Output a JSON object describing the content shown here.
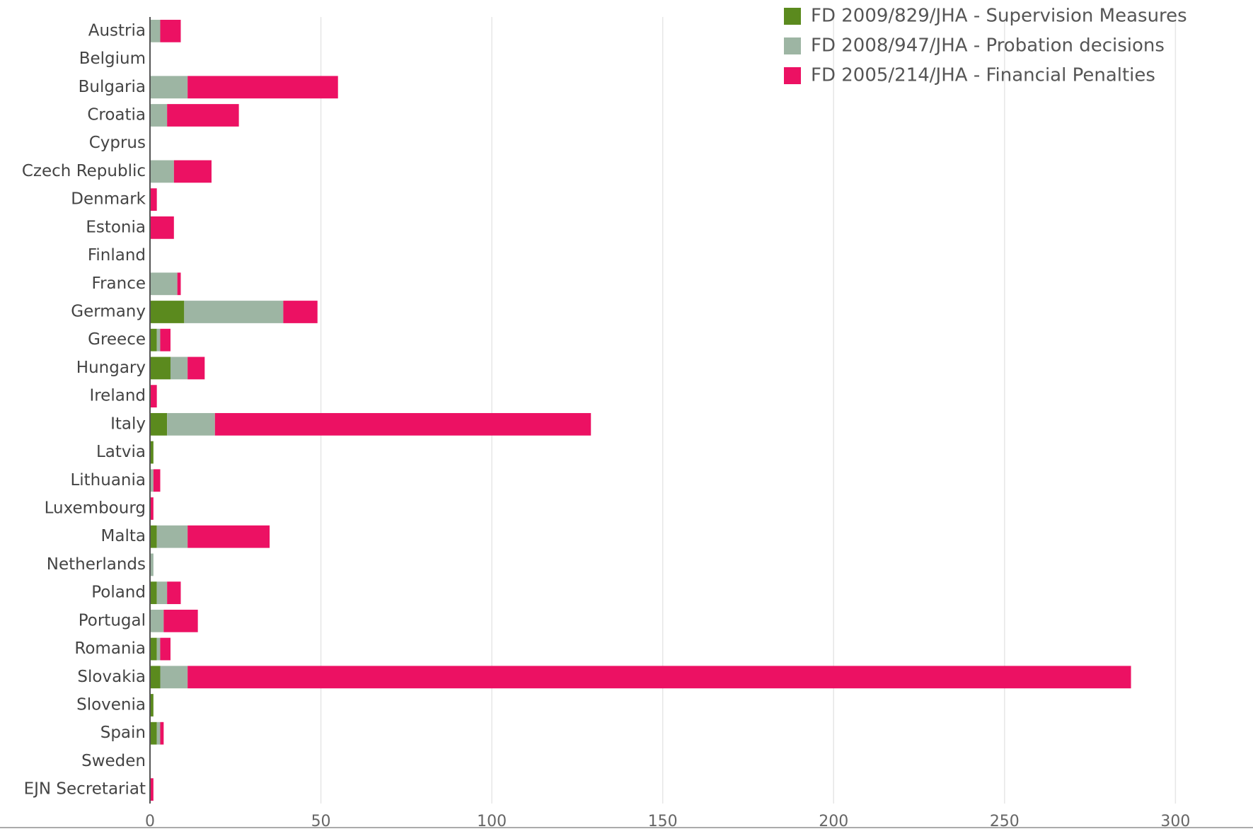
{
  "chart_data": {
    "type": "stacked_barh",
    "categories": [
      "Austria",
      "Belgium",
      "Bulgaria",
      "Croatia",
      "Cyprus",
      "Czech Republic",
      "Denmark",
      "Estonia",
      "Finland",
      "France",
      "Germany",
      "Greece",
      "Hungary",
      "Ireland",
      "Italy",
      "Latvia",
      "Lithuania",
      "Luxembourg",
      "Malta",
      "Netherlands",
      "Poland",
      "Portugal",
      "Romania",
      "Slovakia",
      "Slovenia",
      "Spain",
      "Sweden",
      "EJN Secretariat"
    ],
    "series": [
      {
        "name": "FD 2009/829/JHA - Supervision Measures",
        "color": "#5b8a1e",
        "values": [
          0,
          0,
          0,
          0,
          0,
          0,
          0,
          0,
          0,
          0,
          10,
          2,
          6,
          0,
          5,
          1,
          0,
          0,
          2,
          0,
          2,
          0,
          2,
          3,
          1,
          2,
          0,
          0
        ]
      },
      {
        "name": "FD 2008/947/JHA - Probation decisions",
        "color": "#9db5a3",
        "values": [
          3,
          0,
          11,
          5,
          0,
          7,
          0,
          0,
          0,
          8,
          29,
          1,
          5,
          0,
          14,
          0,
          1,
          0,
          9,
          1,
          3,
          4,
          1,
          8,
          0,
          1,
          0,
          0
        ]
      },
      {
        "name": "FD 2005/214/JHA - Financial Penalties",
        "color": "#ec1163",
        "values": [
          6,
          0,
          44,
          21,
          0,
          11,
          2,
          7,
          0,
          1,
          10,
          3,
          5,
          2,
          110,
          0,
          2,
          1,
          24,
          0,
          4,
          10,
          3,
          276,
          0,
          1,
          0,
          1
        ]
      }
    ],
    "xlim": [
      0,
      320
    ],
    "xticks": [
      0,
      50,
      100,
      150,
      200,
      250,
      300
    ],
    "grid": true,
    "legend": "top-right"
  }
}
